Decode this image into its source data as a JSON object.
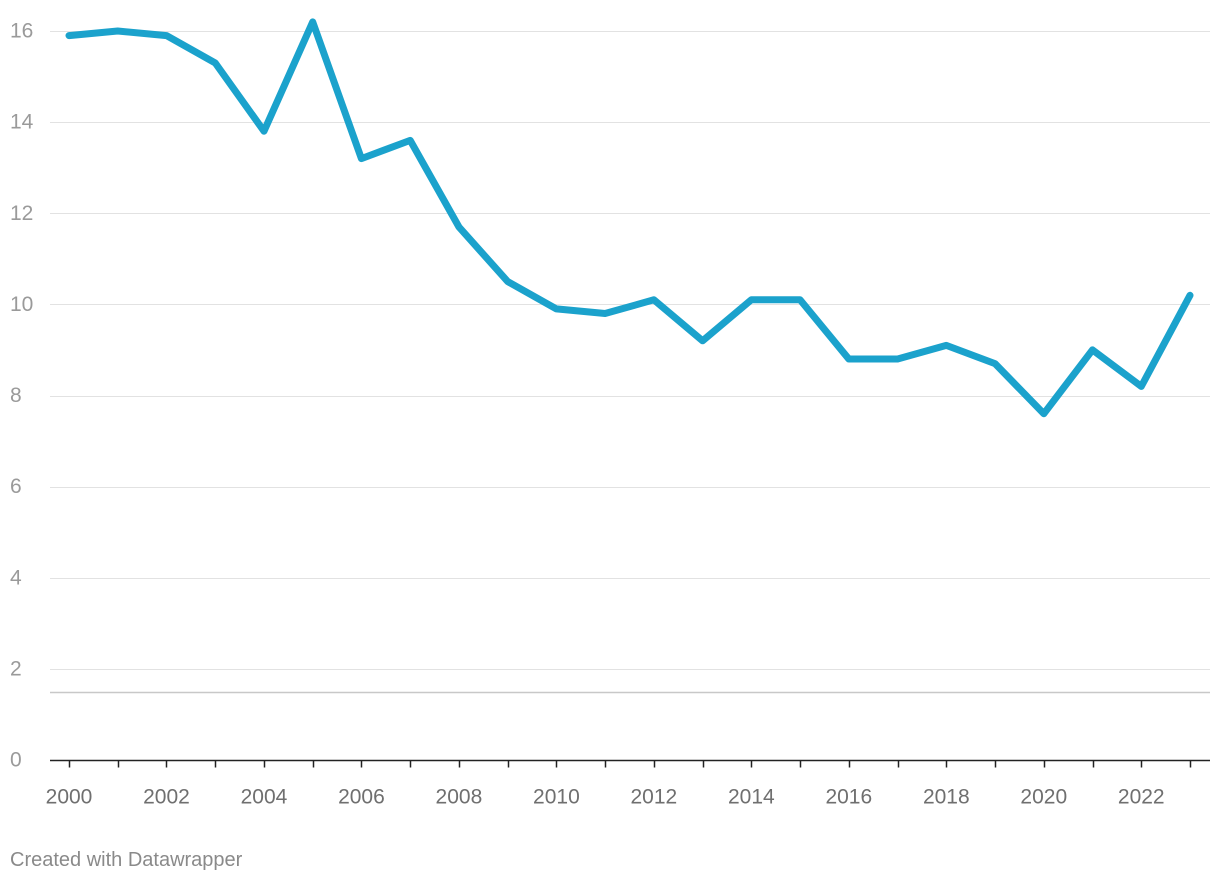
{
  "colors": {
    "line": "#1ba2cc",
    "grid": "#e2e2e2",
    "axis": "#222222",
    "reference_line": "#c8c8c8",
    "y_tick_text": "#9a9a9a",
    "x_tick_text": "#6f6f6f",
    "footer_text": "#8a8a8a"
  },
  "footer": {
    "credit": "Created with Datawrapper"
  },
  "chart_data": {
    "type": "line",
    "title": "",
    "xlabel": "",
    "ylabel": "",
    "xlim": [
      2000,
      2023
    ],
    "ylim": [
      0,
      16
    ],
    "grid": true,
    "legend": "none",
    "y_ticks": [
      0,
      2,
      4,
      6,
      8,
      10,
      12,
      14,
      16
    ],
    "x_ticks": [
      2000,
      2002,
      2004,
      2006,
      2008,
      2010,
      2012,
      2014,
      2016,
      2018,
      2020,
      2022
    ],
    "reference_line_y": 1.5,
    "x": [
      2000,
      2001,
      2002,
      2003,
      2004,
      2005,
      2006,
      2007,
      2008,
      2009,
      2010,
      2011,
      2012,
      2013,
      2014,
      2015,
      2016,
      2017,
      2018,
      2019,
      2020,
      2021,
      2022,
      2023
    ],
    "series": [
      {
        "values": [
          15.9,
          16.0,
          15.9,
          15.3,
          13.8,
          16.2,
          13.2,
          13.6,
          11.7,
          10.5,
          9.9,
          9.8,
          10.1,
          9.2,
          10.1,
          10.1,
          8.8,
          8.8,
          9.1,
          8.7,
          7.6,
          9.0,
          8.2,
          10.2
        ]
      }
    ]
  }
}
